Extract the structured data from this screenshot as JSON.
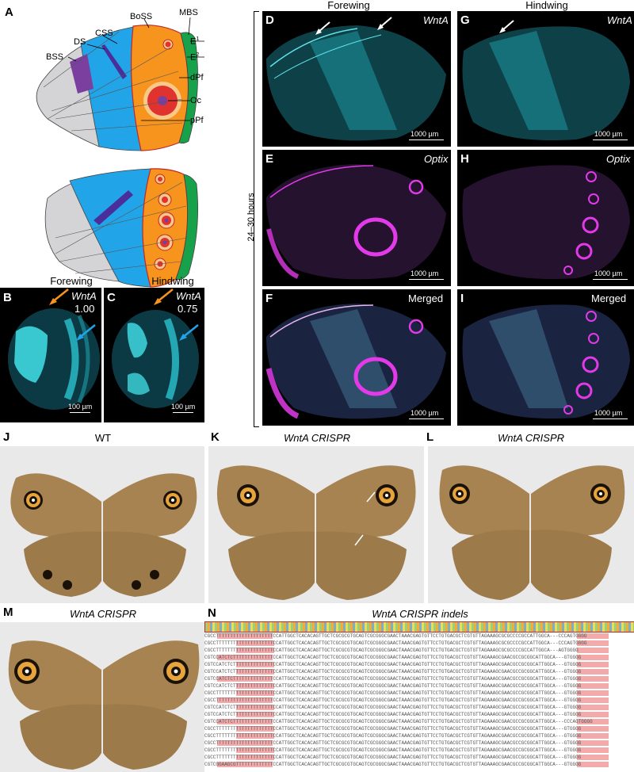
{
  "panels": {
    "A": "A",
    "B": "B",
    "C": "C",
    "D": "D",
    "E": "E",
    "F": "F",
    "G": "G",
    "H": "H",
    "I": "I",
    "J": "J",
    "K": "K",
    "L": "L",
    "M": "M",
    "N": "N"
  },
  "schematic": {
    "labels": {
      "BSS": "BSS",
      "DS": "DS",
      "CSS": "CSS",
      "BoSS": "BoSS",
      "MBS": "MBS",
      "E1": "E",
      "E1sup": "1",
      "E2": "E",
      "E2sup": "2",
      "dPf": "dPf",
      "Oc": "Oc",
      "pPf": "pPf"
    },
    "colors": {
      "grey": "#d4d4d6",
      "blue": "#22a5e8",
      "orange": "#f7941d",
      "green": "#17a14b",
      "purple": "#7b3fa0",
      "red": "#e0322f",
      "pale": "#f9c98a"
    }
  },
  "small_panels": {
    "forewing_title": "Forewing",
    "hindwing_title": "Hindwing",
    "B_gene": "WntA",
    "B_value": "1.00",
    "B_scale": "100 µm",
    "C_gene": "WntA",
    "C_value": "0.75",
    "C_scale": "100 µm"
  },
  "large_panels": {
    "forewing_title": "Forewing",
    "hindwing_title": "Hindwing",
    "time_label": "24–30 hours",
    "D_gene": "WntA",
    "E_gene": "Optix",
    "F_gene": "Merged",
    "G_gene": "WntA",
    "H_gene": "Optix",
    "I_gene": "Merged",
    "scale": "1000 µm"
  },
  "photos": {
    "J_title": "WT",
    "K_title": "WntA CRISPR",
    "L_title": "WntA CRISPR",
    "M_title": "WntA CRISPR"
  },
  "indels": {
    "title": "WntA CRISPR indels",
    "rows": [
      "CGCCTTTTTTTTTTTTTTTTTTTTCCATTGGCTCACACAGTTGCTCGCGCGTGCAGTCGCGGGCGAACTAAACGAGTGTTCCTGTGACGCTCGTGTTAGAAAGCGCGCCCCGCCATTGGCA---CCCAGTGGGG",
      "CGCCTTTTTTTTTTTTTTTTTTTTCCATTGGCTCACACAGTTGCTCGCGCGTGCAGTCGCGGGCGAACTAAACGAGTGTTCCTGTGACGCTCGTGTTAGAAAGCGCGCCCCGCCATTGGCA---CCCAGTGGGG",
      "CGCCTTTTTTTTTTTTTTTTTTTTCCATTGGCTCACACAGTTGCTCGCGCGTGCAGTCGCGGGCGAACTAAACGAGTGTTCCTGTGACGCTCGTGTTAGAAAGCGCGCCCCGCCATTGGCA---AGTGGGG",
      "CGTCCATCTCTTTTTTTTTTTTTTCCATTGGCTCACACAGTTGCTCGCGCGTGCAGTCGCGGGCGAACTAAACGAGTGTTCCTGTGACGCTCGTGTTAGAAAGCGAACGCCGCGGCATTGGCA---GTGGGG",
      "CGTCCATCTCTTTTTTTTTTTTTTCCATTGGCTCACACAGTTGCTCGCGCGTGCAGTCGCGGGCGAACTAAACGAGTGTTCCTGTGACGCTCGTGTTAGAAAGCGAACGCCGCGGCATTGGCA---GTGGGG",
      "CGTCCATCTCTTTTTTTTTTTTTTCCATTGGCTCACACAGTTGCTCGCGCGTGCAGTCGCGGGCGAACTAAACGAGTGTTCCTGTGACGCTCGTGTTAGAAAGCGAACGCCGCGGCATTGGCA---GTGGGG",
      "CGTCCATCTCTTTTTTTTTTTTTTCCATTGGCTCACACAGTTGCTCGCGCGTGCAGTCGCGGGCGAACTAAACGAGTGTTCCTGTGACGCTCGTGTTAGAAAGCGAACGCCGCGGCATTGGCA---GTGGGG",
      "CGTCCATCTCTTTTTTTTTTTTTTCCATTGGCTCACACAGTTGCTCGCGCGTGCAGTCGCGGGCGAACTAAACGAGTGTTCCTGTGACGCTCGTGTTAGAAAGCGAACGCCGCGGCATTGGCA---GTGGGG",
      "CGCCTTTTTTTTTTTTTTTTTTTTCCATTGGCTCACACAGTTGCTCGCGCGTGCAGTCGCGGGCGAACTAAACGAGTGTTCCTGTGACGCTCGTGTTAGAAAGCGAACGCCGCGGCATTGGCA---GTGGGG",
      "CGCCTTTTTTTTTTTTTTTTTTTTCCATTGGCTCACACAGTTGCTCGCGCGTGCAGTCGCGGGCGAACTAAACGAGTGTTCCTGTGACGCTCGTGTTAGAAAGCGAACGCCGCGGCATTGGCA---GTGGGG",
      "CGTCCATCTCTTTTTTTTTTTTTTCCATTGGCTCACACAGTTGCTCGCGCGTGCAGTCGCGGGCGAACTAAACGAGTGTTCCTGTGACGCTCGTGTTAGAAAGCGAACGCCGCGGCATTGGCA---GTGGGG",
      "CGTCCATCTCTTTTTTTTTTTTTTCCATTGGCTCACACAGTTGCTCGCGCGTGCAGTCGCGGGCGAACTAAACGAGTGTTCCTGTGACGCTCGTGTTAGAAAGCGAACGCCGCGGCATTGGCA---GTGGGG",
      "CGTCCATCTCTTTTTTTTTTTTTTCCATTGGCTCACACAGTTGCTCGCGCGTGCAGTCGCGGGCGAACTAAACGAGTGTTCCTGTGACGCTCGTGTTAGAAAGCGAACGCCGCGGCATTGGCA---CCCAGTGGGG",
      "CGCCTTTTTTTTTTTTTTTTTTTTCCATTGGCTCACACAGTTGCTCGCGCGTGCAGTCGCGGGCGAACTAAACGAGTGTTCCTGTGACGCTCGTGTTAGAAAGCGAACGCCGCGGCATTGGCA---GTGGGG",
      "CGCCTTTTTTTTTTTTTTTTTTTTCCATTGGCTCACACAGTTGCTCGCGCGTGCAGTCGCGGGCGAACTAAACGAGTGTTCCTGTGACGCTCGTGTTAGAAAGCGAACGCCGCGGCATTGGCA---GTGGGG",
      "CGCCTTTTTTTTTTTTTTTTTTTTCCATTGGCTCACACAGTTGCTCGCGCGTGCAGTCGCGGGCGAACTAAACGAGTGTTCCTGTGACGCTCGTGTTAGAAAGCGAACGCCGCGGCATTGGCA---GTGGGG",
      "CGCCTTTTTTTTTTTTTTTTTTTTCCATTGGCTCACACAGTTGCTCGCGCGTGCAGTCGCGGGCGAACTAAACGAGTGTTCCTGTGACGCTCGTGTTAGAAAGCGAACGCCGCGGCATTGGCA---GTGGGG",
      "CGCCTTTTTTTTTTTTTTTTTTTTCCATTGGCTCACACAGTTGCTCGCGCGTGCAGTCGCGGGCGAACTAAACGAGTGTTCCTGTGACGCTCGTGTTAGAAAGCGAACGCCGCGGCATTGGCA---GTGGGG",
      "CGTCGGAAGCGTTTTTTTTTTTTTCCATTGGCTCACACAGTTGCTCGCGCGTGCAGTCGCGGGCGAACTAAACGAGTGTTCCTGTGACGCTCGTGTTAGAAAGCGAACGCCGCGGCATTGGCA---GTGGGG"
    ]
  }
}
